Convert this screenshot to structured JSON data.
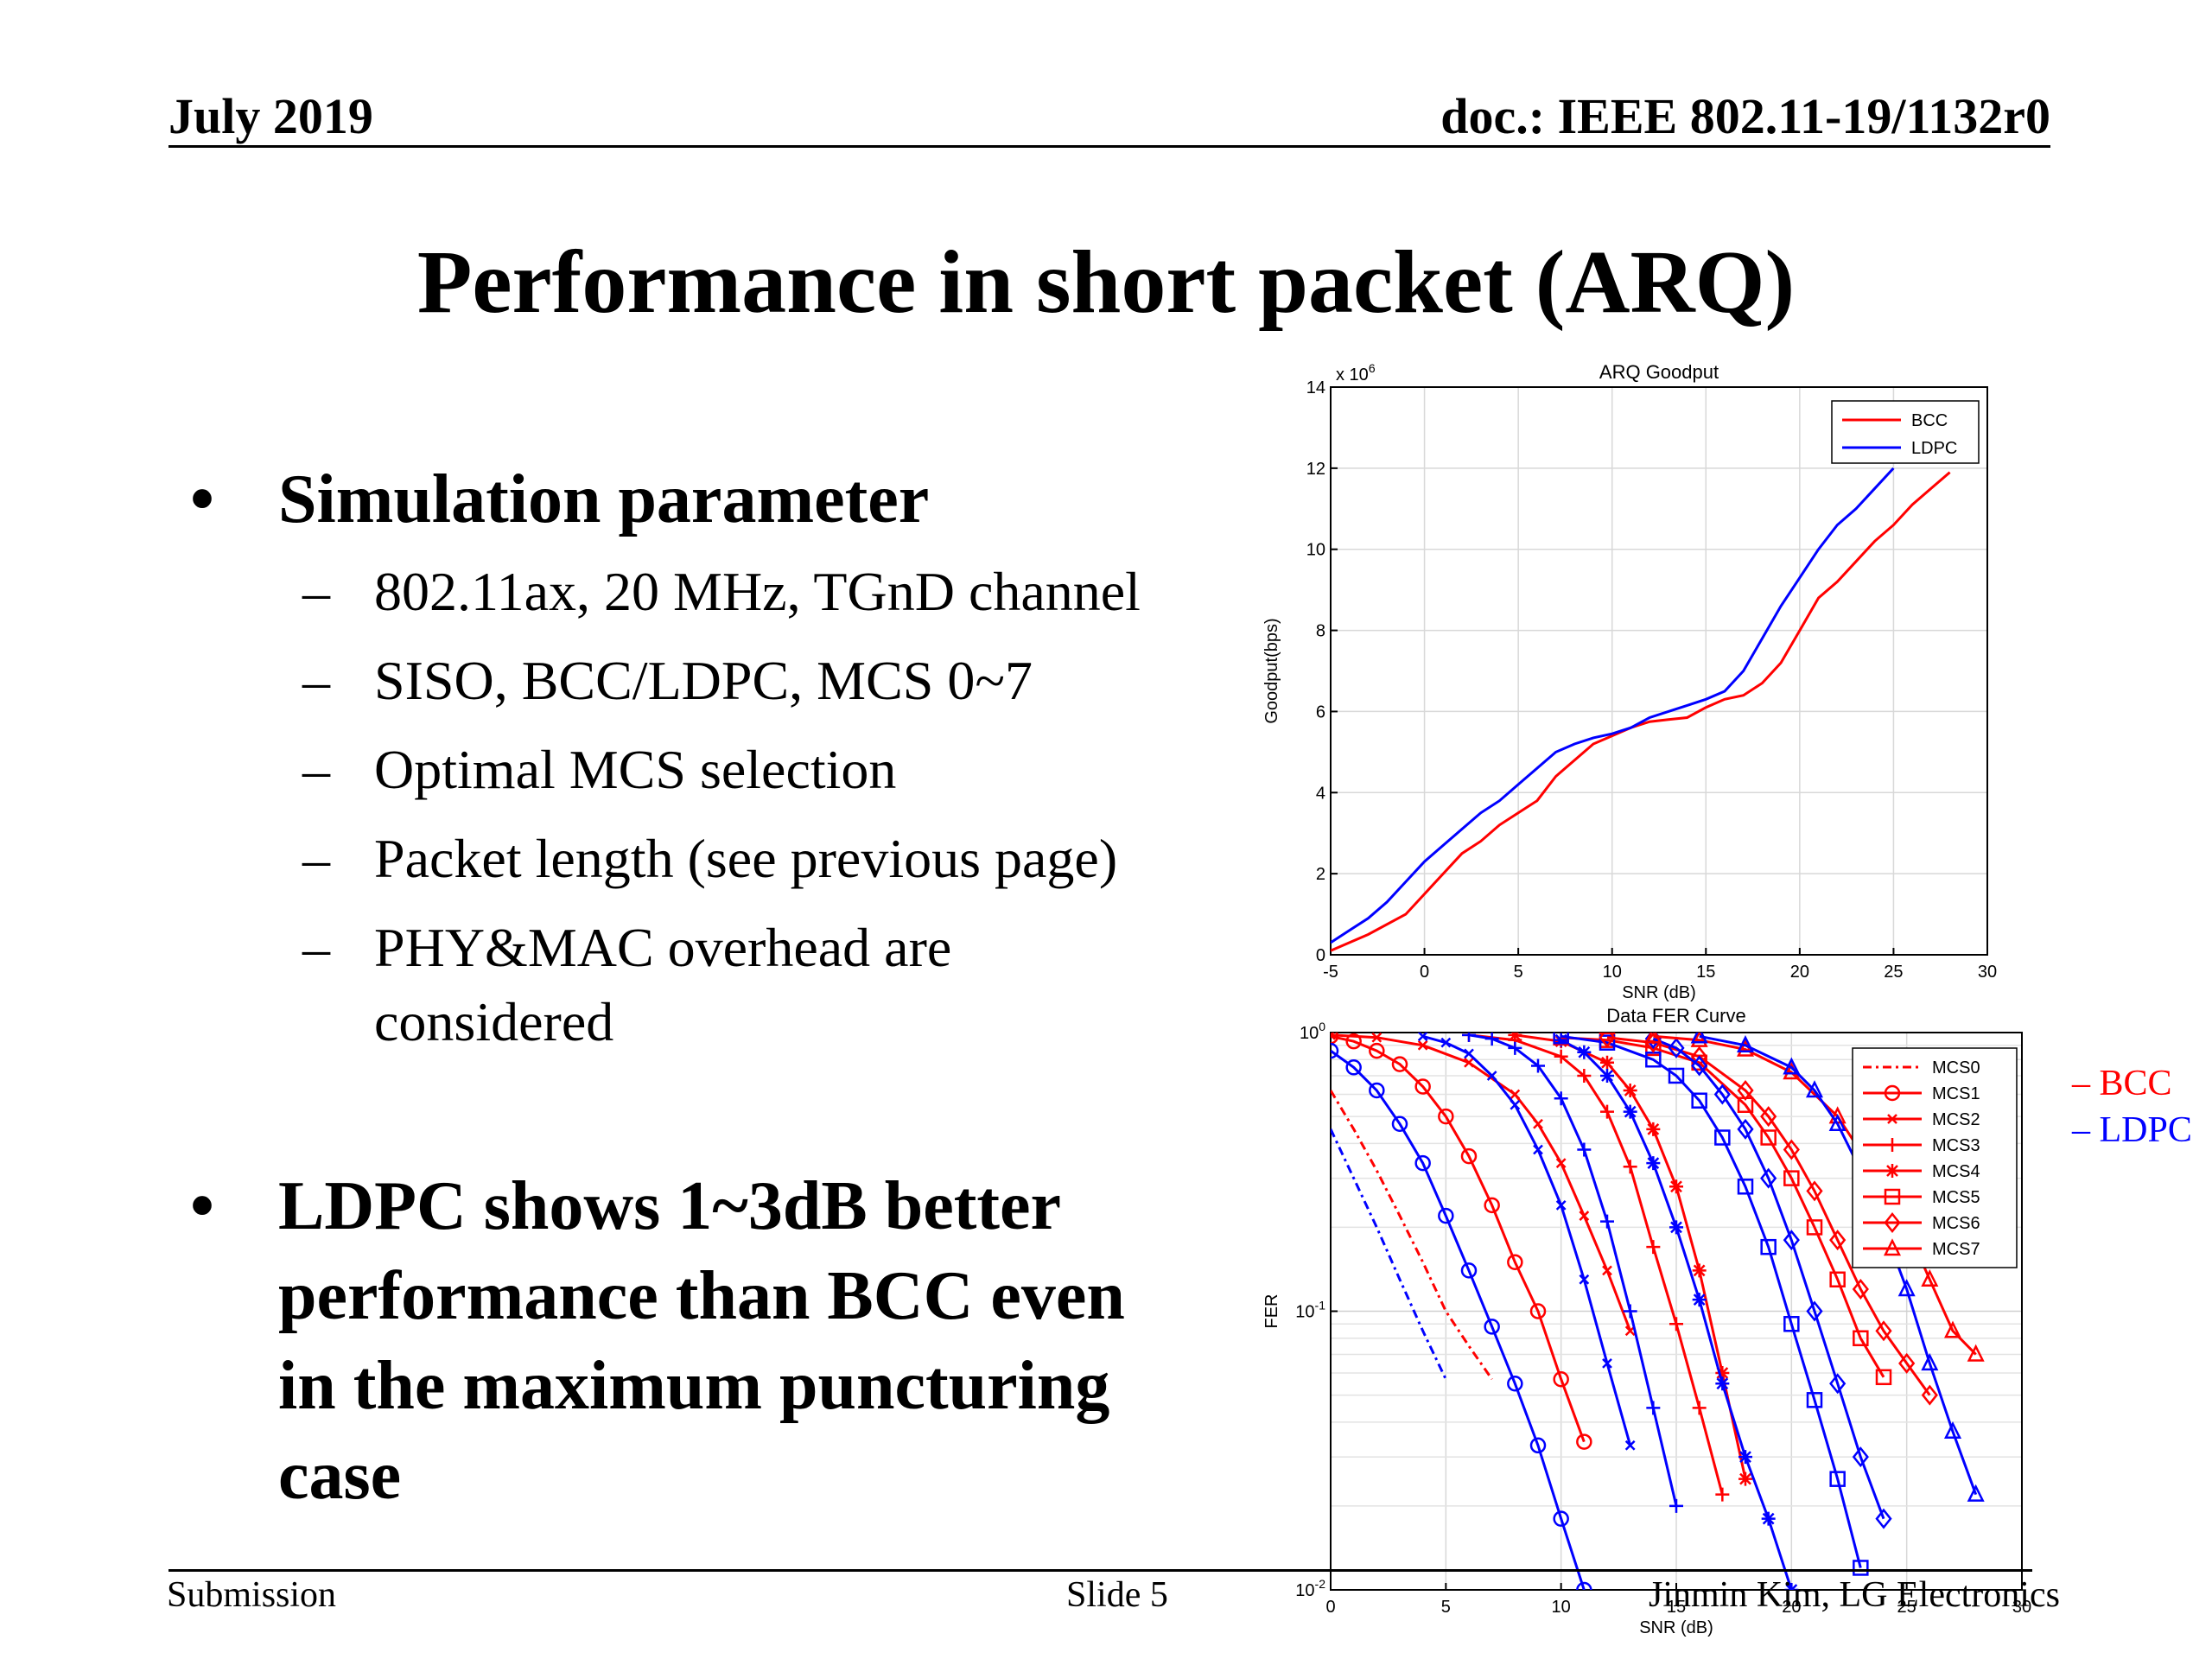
{
  "header": {
    "date": "July 2019",
    "doc": "doc.: IEEE 802.11-19/1132r0"
  },
  "title": "Performance in short packet (ARQ)",
  "bullets": [
    {
      "marker": "•",
      "lines": [
        "Simulation parameter"
      ]
    },
    {
      "marker": "•",
      "lines": [
        "LDPC shows 1~3dB better",
        "performance than BCC even",
        "in the maximum puncturing",
        "case"
      ]
    }
  ],
  "sub_bullets": [
    {
      "marker": "–",
      "lines": [
        "802.11ax, 20 MHz, TGnD channel"
      ]
    },
    {
      "marker": "–",
      "lines": [
        "SISO, BCC/LDPC, MCS 0~7"
      ]
    },
    {
      "marker": "–",
      "lines": [
        "Optimal MCS selection"
      ]
    },
    {
      "marker": "–",
      "lines": [
        "Packet length (see previous page)"
      ]
    },
    {
      "marker": "–",
      "lines": [
        "PHY&MAC overhead are",
        "considered"
      ]
    }
  ],
  "side_legend": {
    "bcc": "– BCC",
    "ldpc": "– LDPC",
    "bcc_color": "#ff0000",
    "ldpc_color": "#0000ff"
  },
  "footer": {
    "left": "Submission",
    "center": "Slide 5",
    "right": "Jinmin Kim, LG Electronics"
  },
  "chart_data": [
    {
      "type": "line",
      "title": "ARQ Goodput",
      "xlabel": "SNR (dB)",
      "ylabel": "Goodput(bps)",
      "y_multiplier": "x 10^6",
      "xlim": [
        -5,
        30
      ],
      "ylim": [
        0,
        14
      ],
      "xticks": [
        -5,
        0,
        5,
        10,
        15,
        20,
        25,
        30
      ],
      "yticks": [
        0,
        2,
        4,
        6,
        8,
        10,
        12,
        14
      ],
      "grid": true,
      "legend_position": "top-right",
      "series": [
        {
          "name": "BCC",
          "color": "#ff0000",
          "x": [
            -5,
            -3,
            -1,
            0,
            1,
            2,
            3,
            4,
            5,
            6,
            7,
            8,
            9,
            10,
            11,
            12,
            13,
            14,
            15,
            16,
            17,
            18,
            19,
            20,
            21,
            22,
            23,
            24,
            25,
            26,
            27,
            28
          ],
          "y": [
            0.1,
            0.5,
            1.0,
            1.5,
            2.0,
            2.5,
            2.8,
            3.2,
            3.5,
            3.8,
            4.4,
            4.8,
            5.2,
            5.4,
            5.6,
            5.75,
            5.8,
            5.85,
            6.1,
            6.3,
            6.4,
            6.7,
            7.2,
            8.0,
            8.8,
            9.2,
            9.7,
            10.2,
            10.6,
            11.1,
            11.5,
            11.9
          ]
        },
        {
          "name": "LDPC",
          "color": "#0000ff",
          "x": [
            -5,
            -4,
            -3,
            -2,
            -1,
            0,
            1,
            2,
            3,
            4,
            5,
            6,
            7,
            8,
            9,
            10,
            11,
            12,
            13,
            14,
            15,
            16,
            17,
            18,
            19,
            20,
            21,
            22,
            23,
            24,
            25
          ],
          "y": [
            0.3,
            0.6,
            0.9,
            1.3,
            1.8,
            2.3,
            2.7,
            3.1,
            3.5,
            3.8,
            4.2,
            4.6,
            5.0,
            5.2,
            5.35,
            5.45,
            5.6,
            5.85,
            6.0,
            6.15,
            6.3,
            6.5,
            7.0,
            7.8,
            8.6,
            9.3,
            10.0,
            10.6,
            11.0,
            11.5,
            12.0
          ]
        }
      ]
    },
    {
      "type": "line",
      "title": "Data FER Curve",
      "xlabel": "SNR (dB)",
      "ylabel": "FER",
      "yscale": "log",
      "xlim": [
        0,
        30
      ],
      "ylim": [
        0.01,
        1
      ],
      "xticks": [
        0,
        5,
        10,
        15,
        20,
        25,
        30
      ],
      "yticks": [
        0.01,
        0.1,
        1
      ],
      "ytick_labels": [
        "10^-2",
        "10^-1",
        "10^0"
      ],
      "grid": true,
      "legend_position": "top-right",
      "series": [
        {
          "name": "MCS0",
          "coding": "BCC",
          "color": "#ff0000",
          "marker": "none",
          "dash": "dashdot",
          "x": [
            0,
            1,
            2,
            3,
            4,
            5,
            6,
            7
          ],
          "y": [
            0.62,
            0.45,
            0.32,
            0.22,
            0.15,
            0.1,
            0.075,
            0.057
          ]
        },
        {
          "name": "MCS0",
          "coding": "LDPC",
          "color": "#0000ff",
          "marker": "none",
          "dash": "dashdot",
          "x": [
            0,
            1,
            2,
            3,
            4,
            5
          ],
          "y": [
            0.45,
            0.3,
            0.2,
            0.13,
            0.085,
            0.057
          ]
        },
        {
          "name": "MCS1",
          "coding": "BCC",
          "color": "#ff0000",
          "marker": "circle",
          "x": [
            0,
            1,
            2,
            3,
            4,
            5,
            6,
            7,
            8,
            9,
            10,
            11
          ],
          "y": [
            0.97,
            0.93,
            0.86,
            0.77,
            0.64,
            0.5,
            0.36,
            0.24,
            0.15,
            0.1,
            0.057,
            0.034
          ]
        },
        {
          "name": "MCS1",
          "coding": "LDPC",
          "color": "#0000ff",
          "marker": "circle",
          "x": [
            0,
            1,
            2,
            3,
            4,
            5,
            6,
            7,
            8,
            9,
            10,
            11
          ],
          "y": [
            0.86,
            0.75,
            0.62,
            0.47,
            0.34,
            0.22,
            0.14,
            0.088,
            0.055,
            0.033,
            0.018,
            0.01
          ]
        },
        {
          "name": "MCS2",
          "coding": "BCC",
          "color": "#ff0000",
          "marker": "x",
          "x": [
            0,
            2,
            4,
            6,
            8,
            9,
            10,
            11,
            12,
            13
          ],
          "y": [
            0.98,
            0.96,
            0.9,
            0.78,
            0.6,
            0.47,
            0.34,
            0.22,
            0.14,
            0.085
          ]
        },
        {
          "name": "MCS2",
          "coding": "LDPC",
          "color": "#0000ff",
          "marker": "x",
          "x": [
            4,
            5,
            6,
            7,
            8,
            9,
            10,
            11,
            12,
            13
          ],
          "y": [
            0.97,
            0.92,
            0.84,
            0.7,
            0.55,
            0.38,
            0.24,
            0.13,
            0.065,
            0.033
          ]
        },
        {
          "name": "MCS3",
          "coding": "BCC",
          "color": "#ff0000",
          "marker": "plus",
          "x": [
            6,
            8,
            10,
            11,
            12,
            13,
            14,
            15,
            16,
            17
          ],
          "y": [
            0.98,
            0.94,
            0.82,
            0.7,
            0.52,
            0.33,
            0.17,
            0.09,
            0.045,
            0.022
          ]
        },
        {
          "name": "MCS3",
          "coding": "LDPC",
          "color": "#0000ff",
          "marker": "plus",
          "x": [
            6,
            7,
            8,
            9,
            10,
            11,
            12,
            13,
            14,
            15
          ],
          "y": [
            0.98,
            0.95,
            0.88,
            0.76,
            0.58,
            0.38,
            0.21,
            0.1,
            0.045,
            0.02
          ]
        },
        {
          "name": "MCS4",
          "coding": "BCC",
          "color": "#ff0000",
          "marker": "star",
          "x": [
            8,
            10,
            12,
            13,
            14,
            15,
            16,
            17,
            18
          ],
          "y": [
            0.98,
            0.93,
            0.78,
            0.62,
            0.45,
            0.28,
            0.14,
            0.06,
            0.025
          ]
        },
        {
          "name": "MCS4",
          "coding": "LDPC",
          "color": "#0000ff",
          "marker": "star",
          "x": [
            10,
            11,
            12,
            13,
            14,
            15,
            16,
            17,
            18,
            19,
            20
          ],
          "y": [
            0.94,
            0.85,
            0.7,
            0.52,
            0.34,
            0.2,
            0.11,
            0.055,
            0.03,
            0.018,
            0.01
          ]
        },
        {
          "name": "MCS5",
          "coding": "BCC",
          "color": "#ff0000",
          "marker": "square",
          "x": [
            10,
            12,
            14,
            16,
            18,
            19,
            20,
            21,
            22,
            23,
            24
          ],
          "y": [
            0.96,
            0.94,
            0.88,
            0.78,
            0.55,
            0.42,
            0.3,
            0.2,
            0.13,
            0.08,
            0.058
          ]
        },
        {
          "name": "MCS5",
          "coding": "LDPC",
          "color": "#0000ff",
          "marker": "square",
          "x": [
            10,
            12,
            14,
            15,
            16,
            17,
            18,
            19,
            20,
            21,
            22,
            23
          ],
          "y": [
            0.97,
            0.92,
            0.8,
            0.7,
            0.57,
            0.42,
            0.28,
            0.17,
            0.09,
            0.048,
            0.025,
            0.012
          ]
        },
        {
          "name": "MCS6",
          "coding": "BCC",
          "color": "#ff0000",
          "marker": "diamond",
          "x": [
            12,
            14,
            16,
            18,
            19,
            20,
            21,
            22,
            23,
            24,
            25,
            26
          ],
          "y": [
            0.96,
            0.92,
            0.82,
            0.62,
            0.5,
            0.38,
            0.27,
            0.18,
            0.12,
            0.085,
            0.065,
            0.05
          ]
        },
        {
          "name": "MCS6",
          "coding": "LDPC",
          "color": "#0000ff",
          "marker": "diamond",
          "x": [
            14,
            15,
            16,
            17,
            18,
            19,
            20,
            21,
            22,
            23,
            24
          ],
          "y": [
            0.95,
            0.88,
            0.76,
            0.6,
            0.45,
            0.3,
            0.18,
            0.1,
            0.055,
            0.03,
            0.018
          ]
        },
        {
          "name": "MCS7",
          "coding": "BCC",
          "color": "#ff0000",
          "marker": "triangle",
          "x": [
            14,
            16,
            18,
            20,
            22,
            24,
            25,
            26,
            27,
            28
          ],
          "y": [
            0.97,
            0.94,
            0.87,
            0.72,
            0.5,
            0.28,
            0.2,
            0.13,
            0.085,
            0.07
          ]
        },
        {
          "name": "MCS7",
          "coding": "LDPC",
          "color": "#0000ff",
          "marker": "triangle",
          "x": [
            16,
            18,
            20,
            21,
            22,
            23,
            24,
            25,
            26,
            27,
            28
          ],
          "y": [
            0.97,
            0.9,
            0.75,
            0.62,
            0.47,
            0.32,
            0.2,
            0.12,
            0.065,
            0.037,
            0.022
          ]
        }
      ]
    }
  ]
}
